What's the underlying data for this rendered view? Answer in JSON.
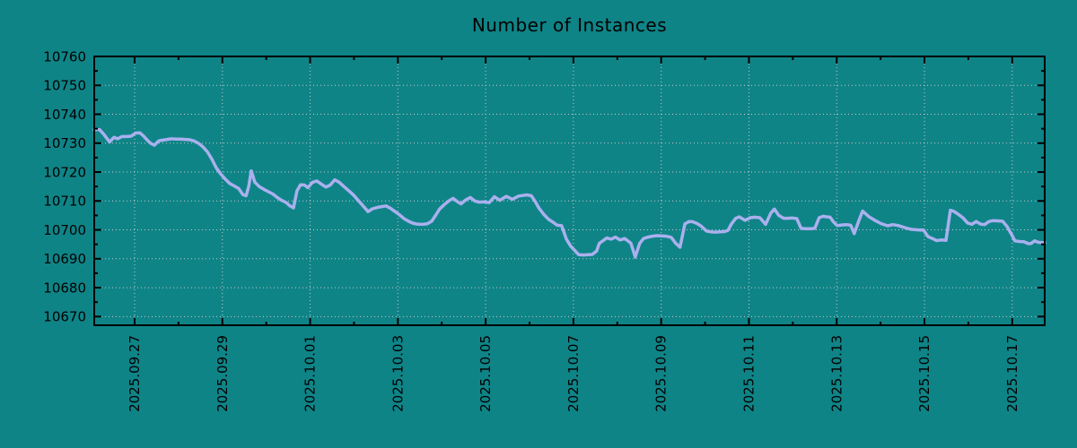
{
  "chart_data": {
    "type": "line",
    "title": "Number of Instances",
    "legend": {
      "visible": false
    },
    "grid": {
      "visible": true,
      "style": "dotted",
      "color": "#c8c8c8"
    },
    "colors": {
      "background": "#0f8487",
      "line": "#aab0ee",
      "axis": "#000000",
      "text": "#000000"
    },
    "x_axis": {
      "label": "",
      "unit": "days since 2025-09-27",
      "range_days": [
        -0.92,
        20.74
      ],
      "tick_positions_days": [
        0,
        2,
        4,
        6,
        8,
        10,
        12,
        14,
        16,
        18,
        20
      ],
      "tick_labels": [
        "2025.09.27",
        "2025.09.29",
        "2025.10.01",
        "2025.10.03",
        "2025.10.05",
        "2025.10.07",
        "2025.10.09",
        "2025.10.11",
        "2025.10.13",
        "2025.10.15",
        "2025.10.17"
      ],
      "minor_tick_days": [
        1,
        3,
        5,
        7,
        9,
        11,
        13,
        15,
        17,
        19
      ]
    },
    "y_axis": {
      "label": "",
      "range": [
        10667,
        10760
      ],
      "tick_values": [
        10670,
        10680,
        10690,
        10700,
        10710,
        10720,
        10730,
        10740,
        10750,
        10760
      ],
      "minor_tick_values": [
        10675,
        10685,
        10695,
        10705,
        10715,
        10725,
        10735,
        10745,
        10755
      ]
    },
    "series": [
      {
        "name": "Number of Instances",
        "color": "#aab0ee",
        "points": [
          [
            -0.92,
            10734.7
          ],
          [
            -0.8,
            10734.7
          ],
          [
            -0.7,
            10733.0
          ],
          [
            -0.57,
            10730.4
          ],
          [
            -0.47,
            10732.0
          ],
          [
            -0.39,
            10731.5
          ],
          [
            -0.29,
            10732.3
          ],
          [
            -0.18,
            10732.3
          ],
          [
            -0.08,
            10732.4
          ],
          [
            0.02,
            10733.5
          ],
          [
            0.12,
            10733.6
          ],
          [
            0.2,
            10732.5
          ],
          [
            0.29,
            10731.0
          ],
          [
            0.37,
            10729.9
          ],
          [
            0.45,
            10729.3
          ],
          [
            0.55,
            10730.8
          ],
          [
            0.63,
            10731.0
          ],
          [
            0.74,
            10731.3
          ],
          [
            0.84,
            10731.5
          ],
          [
            0.94,
            10731.4
          ],
          [
            1.04,
            10731.4
          ],
          [
            1.15,
            10731.3
          ],
          [
            1.25,
            10731.2
          ],
          [
            1.35,
            10730.8
          ],
          [
            1.45,
            10730.0
          ],
          [
            1.55,
            10728.8
          ],
          [
            1.66,
            10727.0
          ],
          [
            1.76,
            10724.5
          ],
          [
            1.86,
            10721.5
          ],
          [
            1.96,
            10719.4
          ],
          [
            2.07,
            10717.5
          ],
          [
            2.17,
            10716.0
          ],
          [
            2.27,
            10715.2
          ],
          [
            2.37,
            10714.3
          ],
          [
            2.47,
            10712.2
          ],
          [
            2.54,
            10711.8
          ],
          [
            2.6,
            10715.0
          ],
          [
            2.66,
            10720.4
          ],
          [
            2.74,
            10716.5
          ],
          [
            2.84,
            10715.0
          ],
          [
            2.95,
            10714.0
          ],
          [
            3.05,
            10713.2
          ],
          [
            3.15,
            10712.4
          ],
          [
            3.25,
            10711.2
          ],
          [
            3.35,
            10710.2
          ],
          [
            3.46,
            10709.4
          ],
          [
            3.54,
            10708.3
          ],
          [
            3.62,
            10707.6
          ],
          [
            3.7,
            10713.5
          ],
          [
            3.78,
            10715.6
          ],
          [
            3.87,
            10715.5
          ],
          [
            3.95,
            10714.6
          ],
          [
            4.05,
            10716.4
          ],
          [
            4.15,
            10716.9
          ],
          [
            4.25,
            10715.9
          ],
          [
            4.36,
            10714.8
          ],
          [
            4.46,
            10715.5
          ],
          [
            4.56,
            10717.3
          ],
          [
            4.66,
            10716.5
          ],
          [
            4.77,
            10715.0
          ],
          [
            4.89,
            10713.4
          ],
          [
            4.99,
            10712.0
          ],
          [
            5.09,
            10710.3
          ],
          [
            5.19,
            10708.6
          ],
          [
            5.32,
            10706.3
          ],
          [
            5.42,
            10707.3
          ],
          [
            5.54,
            10707.8
          ],
          [
            5.73,
            10708.3
          ],
          [
            5.83,
            10707.5
          ],
          [
            5.93,
            10706.4
          ],
          [
            6.03,
            10705.3
          ],
          [
            6.14,
            10703.9
          ],
          [
            6.24,
            10703.0
          ],
          [
            6.34,
            10702.3
          ],
          [
            6.44,
            10702.0
          ],
          [
            6.56,
            10701.9
          ],
          [
            6.67,
            10702.1
          ],
          [
            6.77,
            10703.0
          ],
          [
            6.87,
            10705.3
          ],
          [
            6.95,
            10707.2
          ],
          [
            7.06,
            10708.8
          ],
          [
            7.16,
            10710.0
          ],
          [
            7.26,
            10710.9
          ],
          [
            7.38,
            10709.5
          ],
          [
            7.44,
            10709.0
          ],
          [
            7.55,
            10710.4
          ],
          [
            7.65,
            10711.2
          ],
          [
            7.75,
            10710.0
          ],
          [
            7.85,
            10709.6
          ],
          [
            7.98,
            10709.7
          ],
          [
            8.08,
            10709.4
          ],
          [
            8.2,
            10711.5
          ],
          [
            8.32,
            10710.2
          ],
          [
            8.47,
            10711.6
          ],
          [
            8.61,
            10710.6
          ],
          [
            8.75,
            10711.7
          ],
          [
            8.94,
            10712.1
          ],
          [
            9.04,
            10711.8
          ],
          [
            9.12,
            10710.0
          ],
          [
            9.22,
            10707.4
          ],
          [
            9.33,
            10705.3
          ],
          [
            9.43,
            10703.7
          ],
          [
            9.53,
            10702.7
          ],
          [
            9.63,
            10701.6
          ],
          [
            9.73,
            10701.5
          ],
          [
            9.84,
            10696.8
          ],
          [
            9.94,
            10694.3
          ],
          [
            10.04,
            10692.7
          ],
          [
            10.12,
            10691.4
          ],
          [
            10.23,
            10691.3
          ],
          [
            10.33,
            10691.4
          ],
          [
            10.43,
            10691.5
          ],
          [
            10.53,
            10692.7
          ],
          [
            10.59,
            10695.3
          ],
          [
            10.68,
            10696.3
          ],
          [
            10.76,
            10697.2
          ],
          [
            10.86,
            10696.8
          ],
          [
            10.96,
            10697.5
          ],
          [
            11.06,
            10696.5
          ],
          [
            11.17,
            10697.0
          ],
          [
            11.31,
            10695.4
          ],
          [
            11.41,
            10690.6
          ],
          [
            11.51,
            10695.3
          ],
          [
            11.6,
            10697.0
          ],
          [
            11.7,
            10697.5
          ],
          [
            11.8,
            10697.8
          ],
          [
            11.9,
            10698.0
          ],
          [
            12.0,
            10697.9
          ],
          [
            12.11,
            10697.8
          ],
          [
            12.23,
            10697.4
          ],
          [
            12.33,
            10695.4
          ],
          [
            12.43,
            10694.0
          ],
          [
            12.54,
            10702.1
          ],
          [
            12.64,
            10702.9
          ],
          [
            12.72,
            10702.8
          ],
          [
            12.82,
            10702.2
          ],
          [
            12.92,
            10701.2
          ],
          [
            13.03,
            10699.6
          ],
          [
            13.13,
            10699.3
          ],
          [
            13.23,
            10699.2
          ],
          [
            13.33,
            10699.3
          ],
          [
            13.44,
            10699.4
          ],
          [
            13.52,
            10699.8
          ],
          [
            13.6,
            10702.0
          ],
          [
            13.7,
            10704.0
          ],
          [
            13.78,
            10704.5
          ],
          [
            13.91,
            10703.3
          ],
          [
            14.03,
            10704.2
          ],
          [
            14.13,
            10704.4
          ],
          [
            14.25,
            10704.2
          ],
          [
            14.38,
            10701.9
          ],
          [
            14.5,
            10705.8
          ],
          [
            14.58,
            10707.2
          ],
          [
            14.68,
            10705.0
          ],
          [
            14.79,
            10704.0
          ],
          [
            14.89,
            10704.0
          ],
          [
            14.99,
            10704.1
          ],
          [
            15.09,
            10703.9
          ],
          [
            15.19,
            10700.5
          ],
          [
            15.3,
            10700.4
          ],
          [
            15.4,
            10700.4
          ],
          [
            15.5,
            10700.5
          ],
          [
            15.6,
            10704.2
          ],
          [
            15.69,
            10704.7
          ],
          [
            15.77,
            10704.5
          ],
          [
            15.85,
            10704.4
          ],
          [
            15.93,
            10702.7
          ],
          [
            16.01,
            10701.5
          ],
          [
            16.12,
            10701.7
          ],
          [
            16.22,
            10701.8
          ],
          [
            16.32,
            10701.6
          ],
          [
            16.4,
            10698.7
          ],
          [
            16.5,
            10703.0
          ],
          [
            16.59,
            10706.5
          ],
          [
            16.73,
            10704.6
          ],
          [
            16.87,
            10703.3
          ],
          [
            17.01,
            10702.2
          ],
          [
            17.16,
            10701.4
          ],
          [
            17.28,
            10701.8
          ],
          [
            17.4,
            10701.5
          ],
          [
            17.55,
            10700.8
          ],
          [
            17.69,
            10700.2
          ],
          [
            17.83,
            10700.0
          ],
          [
            17.98,
            10699.9
          ],
          [
            18.08,
            10697.7
          ],
          [
            18.18,
            10697.0
          ],
          [
            18.28,
            10696.3
          ],
          [
            18.38,
            10696.5
          ],
          [
            18.49,
            10696.4
          ],
          [
            18.59,
            10706.8
          ],
          [
            18.67,
            10706.4
          ],
          [
            18.77,
            10705.4
          ],
          [
            18.88,
            10704.1
          ],
          [
            18.98,
            10702.4
          ],
          [
            19.08,
            10701.9
          ],
          [
            19.18,
            10702.9
          ],
          [
            19.28,
            10702.0
          ],
          [
            19.37,
            10701.8
          ],
          [
            19.47,
            10702.9
          ],
          [
            19.57,
            10703.2
          ],
          [
            19.67,
            10703.1
          ],
          [
            19.78,
            10703.0
          ],
          [
            19.88,
            10701.2
          ],
          [
            19.98,
            10698.6
          ],
          [
            20.06,
            10696.2
          ],
          [
            20.16,
            10696.0
          ],
          [
            20.27,
            10695.9
          ],
          [
            20.37,
            10695.2
          ],
          [
            20.43,
            10695.3
          ],
          [
            20.51,
            10696.2
          ],
          [
            20.59,
            10695.7
          ],
          [
            20.68,
            10695.6
          ],
          [
            20.74,
            10695.6
          ]
        ]
      }
    ]
  }
}
